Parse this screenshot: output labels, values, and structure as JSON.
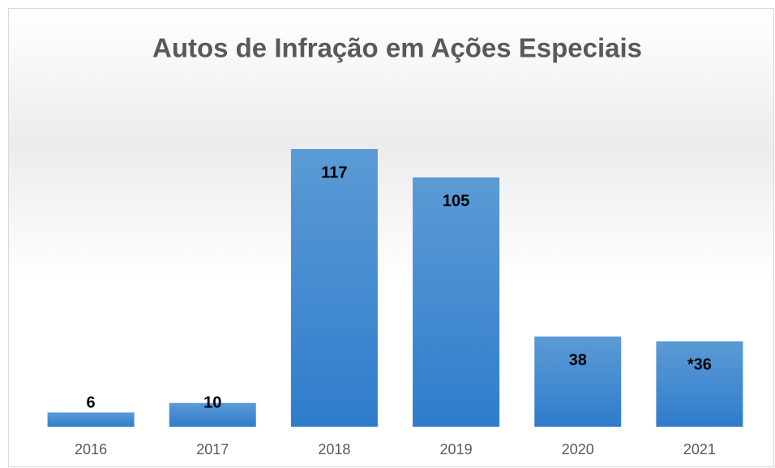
{
  "chart_data": {
    "type": "bar",
    "title": "Autos de Infração em Ações Especiais",
    "categories": [
      "2016",
      "2017",
      "2018",
      "2019",
      "2020",
      "2021"
    ],
    "values": [
      6,
      10,
      117,
      105,
      38,
      36
    ],
    "value_labels": [
      "6",
      "10",
      "117",
      "105",
      "38",
      "*36"
    ],
    "color": "#4a8fd6"
  }
}
